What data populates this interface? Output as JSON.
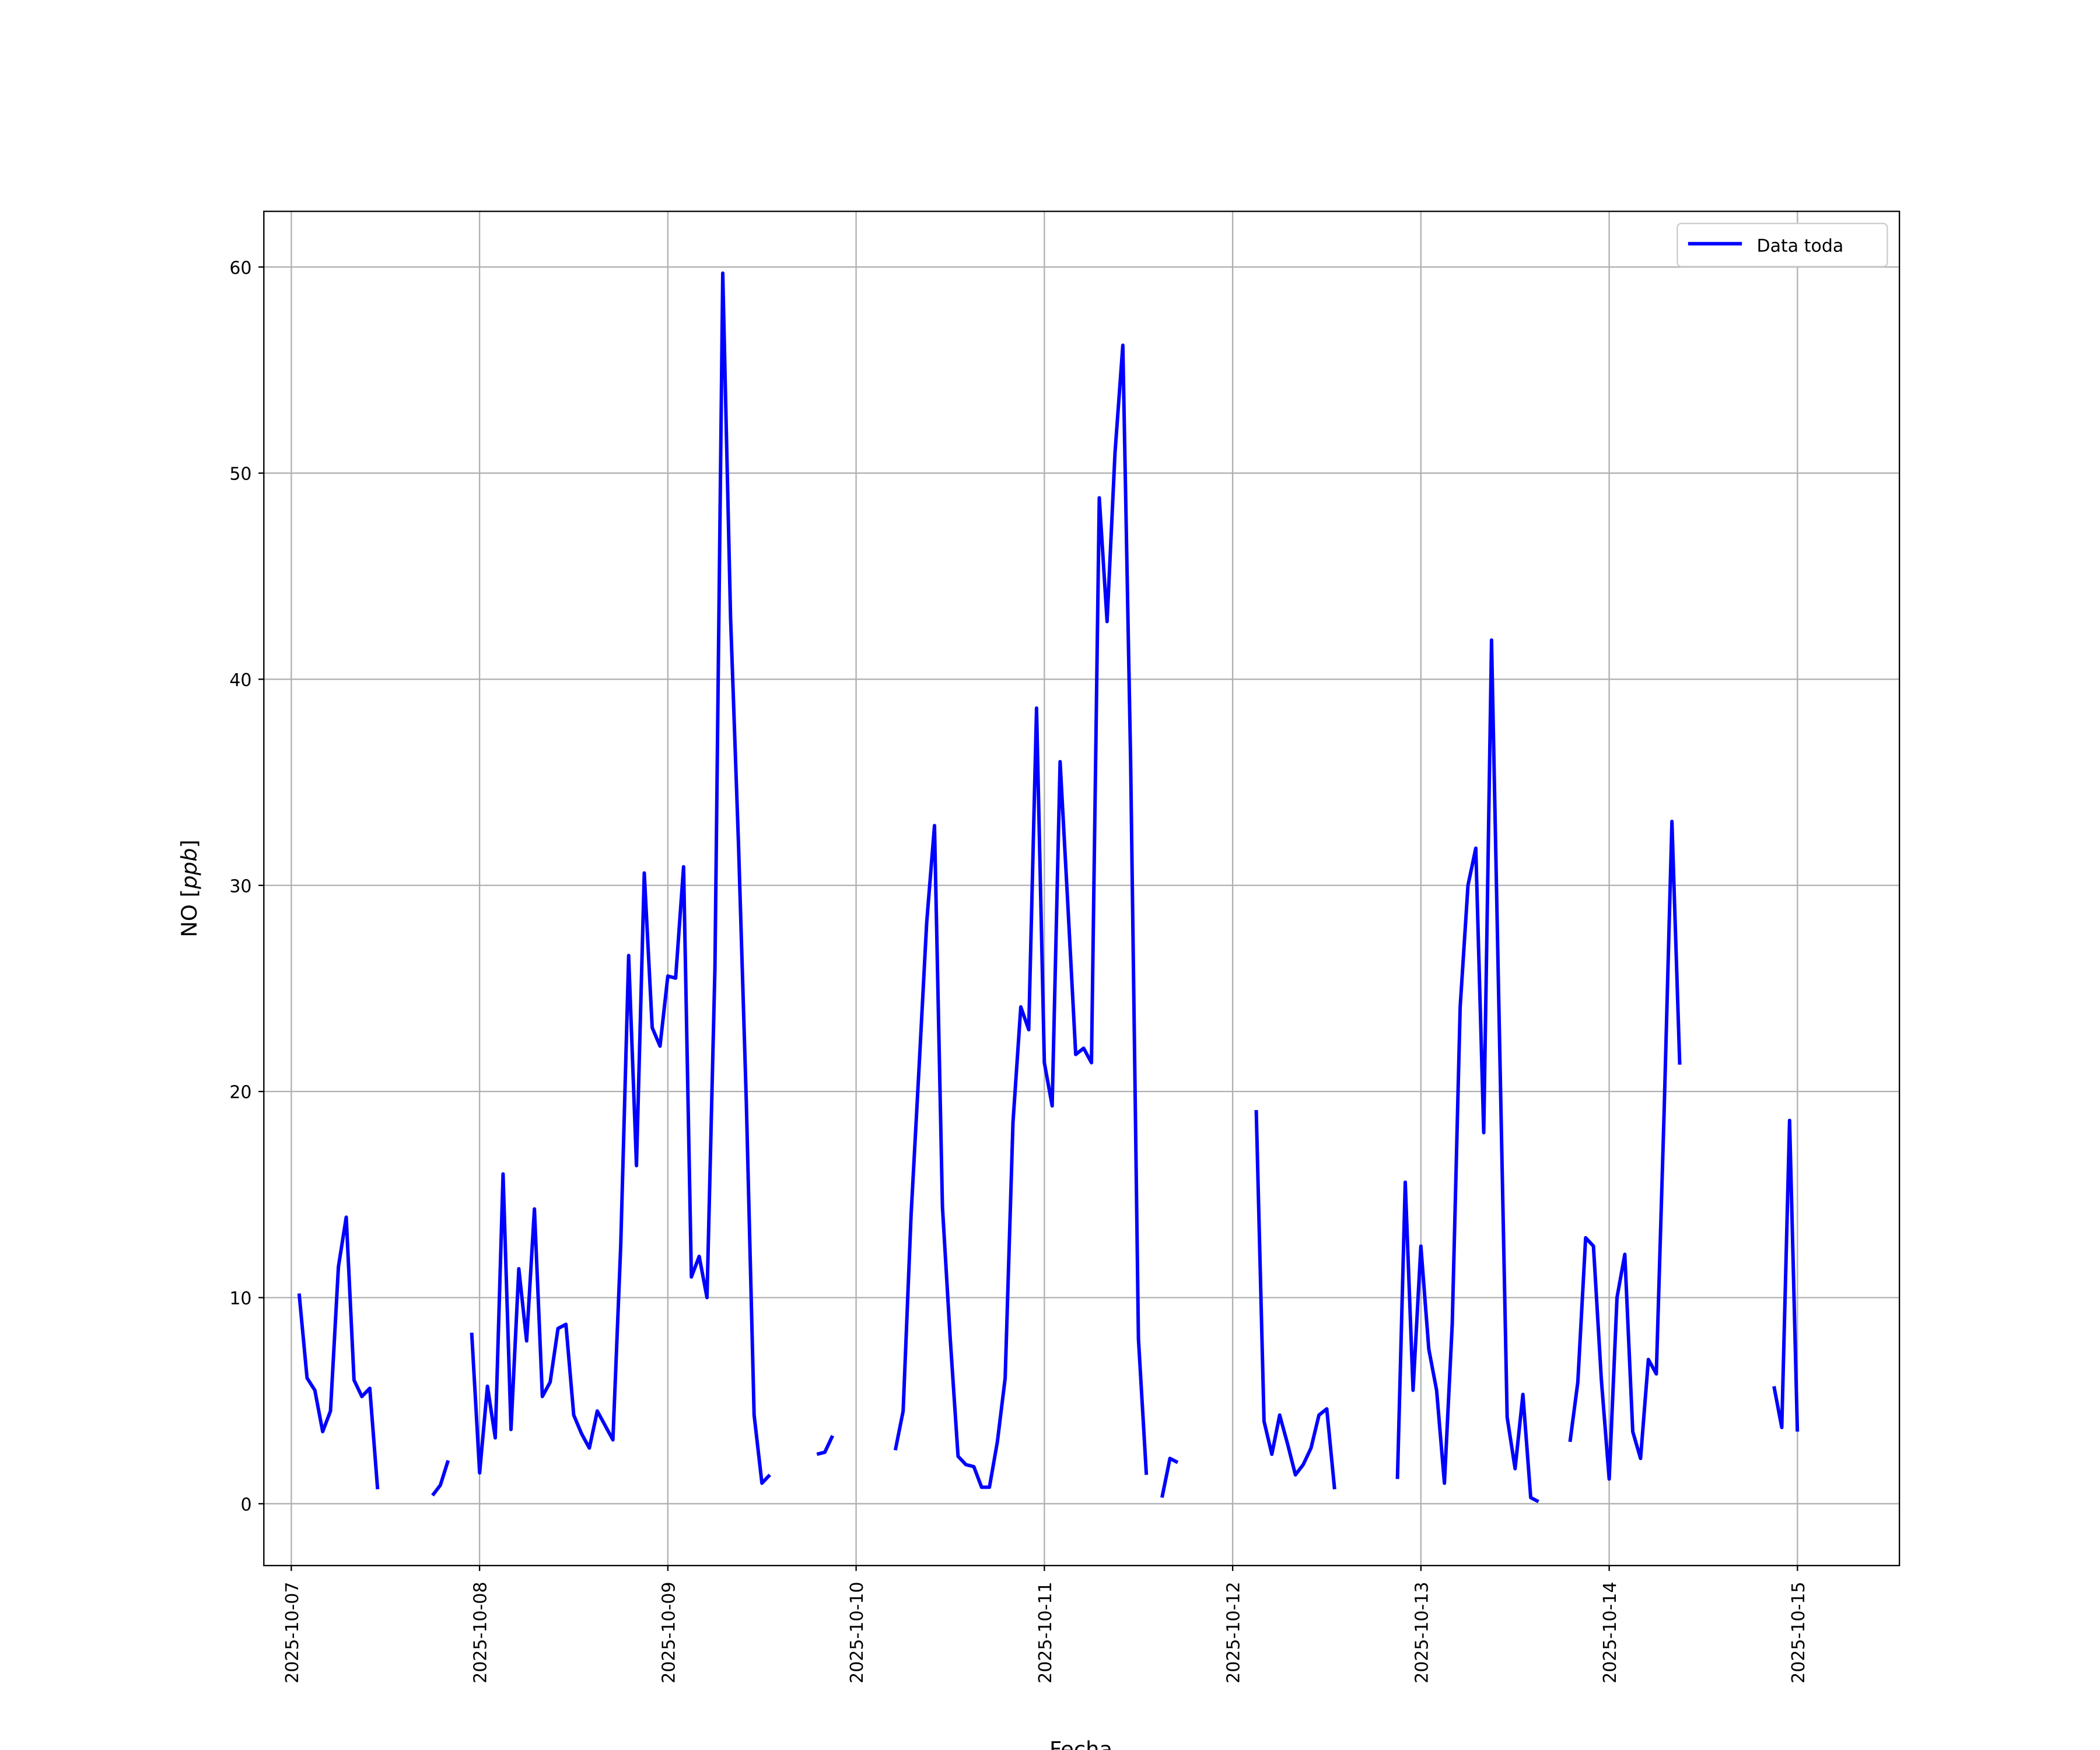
{
  "chart_data": {
    "type": "line",
    "title": "",
    "xlabel": "Fecha",
    "ylabel_main": "NO [",
    "ylabel_unit": "ppb",
    "ylabel_close": "]",
    "ylim": [
      -3,
      62.7
    ],
    "xlim": [
      "2025-10-06 20:30",
      "2025-10-15 13:00"
    ],
    "grid": true,
    "legend": {
      "placement": "top-right",
      "entries": [
        "Data toda"
      ]
    },
    "yticks": [
      0,
      10,
      20,
      30,
      40,
      50,
      60
    ],
    "xticks": [
      "2025-10-07",
      "2025-10-08",
      "2025-10-09",
      "2025-10-10",
      "2025-10-11",
      "2025-10-12",
      "2025-10-13",
      "2025-10-14",
      "2025-10-15"
    ],
    "series": [
      {
        "name": "Data toda",
        "color": "#0000ff",
        "points": [
          [
            "2025-10-07 01:00",
            10.2
          ],
          [
            "2025-10-07 02:00",
            6.1
          ],
          [
            "2025-10-07 03:00",
            5.5
          ],
          [
            "2025-10-07 04:00",
            3.5
          ],
          [
            "2025-10-07 05:00",
            4.5
          ],
          [
            "2025-10-07 06:00",
            11.5
          ],
          [
            "2025-10-07 07:00",
            13.9
          ],
          [
            "2025-10-07 08:00",
            6.0
          ],
          [
            "2025-10-07 09:00",
            5.2
          ],
          [
            "2025-10-07 10:00",
            5.6
          ],
          [
            "2025-10-07 11:00",
            0.7
          ],
          null,
          [
            "2025-10-07 18:00",
            0.4
          ],
          [
            "2025-10-07 19:00",
            0.9
          ],
          [
            "2025-10-07 20:00",
            2.1
          ],
          null,
          [
            "2025-10-07 23:00",
            8.3
          ],
          [
            "2025-10-08 00:00",
            1.5
          ],
          [
            "2025-10-08 01:00",
            5.7
          ],
          [
            "2025-10-08 02:00",
            3.2
          ],
          [
            "2025-10-08 03:00",
            16.0
          ],
          [
            "2025-10-08 04:00",
            3.6
          ],
          [
            "2025-10-08 05:00",
            11.4
          ],
          [
            "2025-10-08 06:00",
            7.9
          ],
          [
            "2025-10-08 07:00",
            14.3
          ],
          [
            "2025-10-08 08:00",
            5.2
          ],
          [
            "2025-10-08 09:00",
            5.9
          ],
          [
            "2025-10-08 10:00",
            8.5
          ],
          [
            "2025-10-08 11:00",
            8.7
          ],
          [
            "2025-10-08 12:00",
            4.3
          ],
          [
            "2025-10-08 13:00",
            3.4
          ],
          [
            "2025-10-08 14:00",
            2.7
          ],
          [
            "2025-10-08 15:00",
            4.5
          ],
          [
            "2025-10-08 16:00",
            3.8
          ],
          [
            "2025-10-08 17:00",
            3.1
          ],
          [
            "2025-10-08 18:00",
            12.5
          ],
          [
            "2025-10-08 19:00",
            26.6
          ],
          [
            "2025-10-08 20:00",
            16.4
          ],
          [
            "2025-10-08 21:00",
            30.6
          ],
          [
            "2025-10-08 22:00",
            23.1
          ],
          [
            "2025-10-08 23:00",
            22.2
          ],
          [
            "2025-10-09 00:00",
            25.6
          ],
          [
            "2025-10-09 01:00",
            25.5
          ],
          [
            "2025-10-09 02:00",
            30.9
          ],
          [
            "2025-10-09 03:00",
            11.0
          ],
          [
            "2025-10-09 04:00",
            12.0
          ],
          [
            "2025-10-09 05:00",
            10.0
          ],
          [
            "2025-10-09 06:00",
            26.0
          ],
          [
            "2025-10-09 07:00",
            59.7
          ],
          [
            "2025-10-09 08:00",
            43.0
          ],
          [
            "2025-10-09 09:00",
            32.0
          ],
          [
            "2025-10-09 10:00",
            19.5
          ],
          [
            "2025-10-09 11:00",
            4.3
          ],
          [
            "2025-10-09 12:00",
            1.0
          ],
          [
            "2025-10-09 13:00",
            1.4
          ],
          null,
          [
            "2025-10-09 19:00",
            2.4
          ],
          [
            "2025-10-09 20:00",
            2.5
          ],
          [
            "2025-10-09 21:00",
            3.3
          ],
          null,
          [
            "2025-10-10 05:00",
            2.6
          ],
          [
            "2025-10-10 06:00",
            4.5
          ],
          [
            "2025-10-10 07:00",
            14.0
          ],
          [
            "2025-10-10 08:00",
            21.0
          ],
          [
            "2025-10-10 09:00",
            28.2
          ],
          [
            "2025-10-10 10:00",
            32.9
          ],
          [
            "2025-10-10 11:00",
            14.4
          ],
          [
            "2025-10-10 12:00",
            8.0
          ],
          [
            "2025-10-10 13:00",
            2.3
          ],
          [
            "2025-10-10 14:00",
            1.9
          ],
          [
            "2025-10-10 15:00",
            1.8
          ],
          [
            "2025-10-10 16:00",
            0.8
          ],
          [
            "2025-10-10 17:00",
            0.8
          ],
          [
            "2025-10-10 18:00",
            3.0
          ],
          [
            "2025-10-10 19:00",
            6.1
          ],
          [
            "2025-10-10 20:00",
            18.5
          ],
          [
            "2025-10-10 21:00",
            24.1
          ],
          [
            "2025-10-10 22:00",
            23.0
          ],
          [
            "2025-10-10 23:00",
            38.6
          ],
          [
            "2025-10-11 00:00",
            21.4
          ],
          [
            "2025-10-11 01:00",
            19.3
          ],
          [
            "2025-10-11 02:00",
            36.0
          ],
          [
            "2025-10-11 03:00",
            29.0
          ],
          [
            "2025-10-11 04:00",
            21.8
          ],
          [
            "2025-10-11 05:00",
            22.1
          ],
          [
            "2025-10-11 06:00",
            21.4
          ],
          [
            "2025-10-11 07:00",
            48.8
          ],
          [
            "2025-10-11 08:00",
            42.8
          ],
          [
            "2025-10-11 09:00",
            51.0
          ],
          [
            "2025-10-11 10:00",
            56.2
          ],
          [
            "2025-10-11 11:00",
            36.0
          ],
          [
            "2025-10-11 12:00",
            8.0
          ],
          [
            "2025-10-11 13:00",
            1.4
          ],
          null,
          [
            "2025-10-11 15:00",
            0.3
          ],
          [
            "2025-10-11 16:00",
            2.2
          ],
          [
            "2025-10-11 17:00",
            2.0
          ],
          null,
          [
            "2025-10-12 03:00",
            19.1
          ],
          [
            "2025-10-12 04:00",
            4.0
          ],
          [
            "2025-10-12 05:00",
            2.4
          ],
          [
            "2025-10-12 06:00",
            4.3
          ],
          [
            "2025-10-12 07:00",
            2.9
          ],
          [
            "2025-10-12 08:00",
            1.4
          ],
          [
            "2025-10-12 09:00",
            1.9
          ],
          [
            "2025-10-12 10:00",
            2.7
          ],
          [
            "2025-10-12 11:00",
            4.3
          ],
          [
            "2025-10-12 12:00",
            4.6
          ],
          [
            "2025-10-12 13:00",
            0.7
          ],
          null,
          [
            "2025-10-12 21:00",
            1.2
          ],
          [
            "2025-10-12 22:00",
            15.6
          ],
          [
            "2025-10-12 23:00",
            5.5
          ],
          [
            "2025-10-13 00:00",
            12.5
          ],
          [
            "2025-10-13 01:00",
            7.5
          ],
          [
            "2025-10-13 02:00",
            5.5
          ],
          [
            "2025-10-13 03:00",
            1.0
          ],
          [
            "2025-10-13 04:00",
            8.7
          ],
          [
            "2025-10-13 05:00",
            24.1
          ],
          [
            "2025-10-13 06:00",
            30.0
          ],
          [
            "2025-10-13 07:00",
            31.8
          ],
          [
            "2025-10-13 08:00",
            18.0
          ],
          [
            "2025-10-13 09:00",
            41.9
          ],
          [
            "2025-10-13 10:00",
            23.0
          ],
          [
            "2025-10-13 11:00",
            4.2
          ],
          [
            "2025-10-13 12:00",
            1.7
          ],
          [
            "2025-10-13 13:00",
            5.3
          ],
          [
            "2025-10-13 14:00",
            0.3
          ],
          [
            "2025-10-13 15:00",
            0.1
          ],
          null,
          [
            "2025-10-13 19:00",
            3.0
          ],
          [
            "2025-10-13 20:00",
            5.9
          ],
          [
            "2025-10-13 21:00",
            12.9
          ],
          [
            "2025-10-13 22:00",
            12.5
          ],
          [
            "2025-10-13 23:00",
            6.0
          ],
          [
            "2025-10-14 00:00",
            1.2
          ],
          [
            "2025-10-14 01:00",
            10.0
          ],
          [
            "2025-10-14 02:00",
            12.1
          ],
          [
            "2025-10-14 03:00",
            3.5
          ],
          [
            "2025-10-14 04:00",
            2.2
          ],
          [
            "2025-10-14 05:00",
            7.0
          ],
          [
            "2025-10-14 06:00",
            6.3
          ],
          [
            "2025-10-14 07:00",
            19.0
          ],
          [
            "2025-10-14 08:00",
            33.1
          ],
          [
            "2025-10-14 09:00",
            21.3
          ],
          null,
          [
            "2025-10-14 21:00",
            5.7
          ],
          [
            "2025-10-14 22:00",
            3.7
          ],
          [
            "2025-10-14 23:00",
            18.6
          ],
          [
            "2025-10-15 00:00",
            3.5
          ]
        ]
      }
    ]
  }
}
